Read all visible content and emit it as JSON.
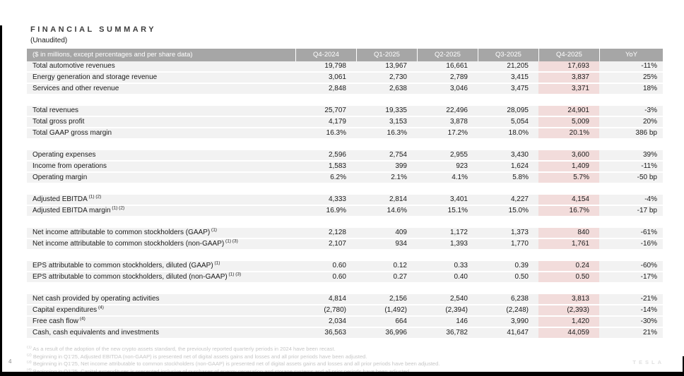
{
  "title": "FINANCIAL SUMMARY",
  "subtitle": "(Unaudited)",
  "table": {
    "header_label": "($ in millions, except percentages and per share data)",
    "columns": [
      "Q4-2024",
      "Q1-2025",
      "Q2-2025",
      "Q3-2025",
      "Q4-2025",
      "YoY"
    ],
    "highlight_column_index": 4,
    "sections": [
      {
        "rows": [
          {
            "label": "Total automotive revenues",
            "sup": "",
            "values": [
              "19,798",
              "13,967",
              "16,661",
              "21,205",
              "17,693",
              "-11%"
            ]
          },
          {
            "label": "Energy generation and storage revenue",
            "sup": "",
            "values": [
              "3,061",
              "2,730",
              "2,789",
              "3,415",
              "3,837",
              "25%"
            ]
          },
          {
            "label": "Services and other revenue",
            "sup": "",
            "values": [
              "2,848",
              "2,638",
              "3,046",
              "3,475",
              "3,371",
              "18%"
            ]
          }
        ]
      },
      {
        "rows": [
          {
            "label": "Total revenues",
            "sup": "",
            "values": [
              "25,707",
              "19,335",
              "22,496",
              "28,095",
              "24,901",
              "-3%"
            ]
          },
          {
            "label": "Total gross profit",
            "sup": "",
            "values": [
              "4,179",
              "3,153",
              "3,878",
              "5,054",
              "5,009",
              "20%"
            ]
          },
          {
            "label": "Total GAAP gross margin",
            "sup": "",
            "values": [
              "16.3%",
              "16.3%",
              "17.2%",
              "18.0%",
              "20.1%",
              "386 bp"
            ]
          }
        ]
      },
      {
        "rows": [
          {
            "label": "Operating expenses",
            "sup": "",
            "values": [
              "2,596",
              "2,754",
              "2,955",
              "3,430",
              "3,600",
              "39%"
            ]
          },
          {
            "label": "Income from operations",
            "sup": "",
            "values": [
              "1,583",
              "399",
              "923",
              "1,624",
              "1,409",
              "-11%"
            ]
          },
          {
            "label": "Operating margin",
            "sup": "",
            "values": [
              "6.2%",
              "2.1%",
              "4.1%",
              "5.8%",
              "5.7%",
              "-50 bp"
            ]
          }
        ]
      },
      {
        "rows": [
          {
            "label": "Adjusted EBITDA",
            "sup": "(1) (2)",
            "values": [
              "4,333",
              "2,814",
              "3,401",
              "4,227",
              "4,154",
              "-4%"
            ]
          },
          {
            "label": "Adjusted EBITDA margin",
            "sup": "(1) (2)",
            "values": [
              "16.9%",
              "14.6%",
              "15.1%",
              "15.0%",
              "16.7%",
              "-17 bp"
            ]
          }
        ]
      },
      {
        "rows": [
          {
            "label": "Net income attributable to common stockholders (GAAP)",
            "sup": "(1)",
            "values": [
              "2,128",
              "409",
              "1,172",
              "1,373",
              "840",
              "-61%"
            ]
          },
          {
            "label": "Net income attributable to common stockholders (non-GAAP)",
            "sup": "(1) (3)",
            "values": [
              "2,107",
              "934",
              "1,393",
              "1,770",
              "1,761",
              "-16%"
            ]
          }
        ]
      },
      {
        "rows": [
          {
            "label": "EPS attributable to common stockholders, diluted (GAAP)",
            "sup": "(1)",
            "values": [
              "0.60",
              "0.12",
              "0.33",
              "0.39",
              "0.24",
              "-60%"
            ]
          },
          {
            "label": "EPS attributable to common stockholders, diluted (non-GAAP)",
            "sup": "(1) (3)",
            "values": [
              "0.60",
              "0.27",
              "0.40",
              "0.50",
              "0.50",
              "-17%"
            ]
          }
        ]
      },
      {
        "rows": [
          {
            "label": "Net cash provided by operating activities",
            "sup": "",
            "values": [
              "4,814",
              "2,156",
              "2,540",
              "6,238",
              "3,813",
              "-21%"
            ]
          },
          {
            "label": "Capital expenditures",
            "sup": "(4)",
            "values": [
              "(2,780)",
              "(1,492)",
              "(2,394)",
              "(2,248)",
              "(2,393)",
              "-14%"
            ]
          },
          {
            "label": "Free cash flow",
            "sup": "(4)",
            "values": [
              "2,034",
              "664",
              "146",
              "3,990",
              "1,420",
              "-30%"
            ]
          },
          {
            "label": "Cash, cash equivalents and investments",
            "sup": "",
            "values": [
              "36,563",
              "36,996",
              "36,782",
              "41,647",
              "44,059",
              "21%"
            ]
          }
        ]
      }
    ]
  },
  "footnotes": [
    {
      "marker": "(1)",
      "text": "As a result of the adoption of the new crypto assets standard, the previously reported quarterly periods in 2024 have been recast."
    },
    {
      "marker": "(2)",
      "text": "Beginning in Q1'25, Adjusted EBITDA (non-GAAP) is presented net of digital assets gains and losses and all prior periods have been adjusted."
    },
    {
      "marker": "(3)",
      "text": "Beginning in Q1'25, Net income attributable to common stockholders (non-GAAP) is presented net of digital assets gains and losses and all prior periods have been adjusted."
    },
    {
      "marker": "(4)",
      "text": "Beginning in Q1'25, Capital expenditures is presented inclusive of purchases of energy generation and storage systems and all prior periods have been adjusted."
    }
  ],
  "page": {
    "number": "4",
    "logo_text": "TESLA"
  },
  "colors": {
    "header_bg": "#a6a6a6",
    "row_bg": "#f2f2f2",
    "highlight_bg": "#f2dcdb",
    "footnote_text": "#c6c6c6"
  }
}
